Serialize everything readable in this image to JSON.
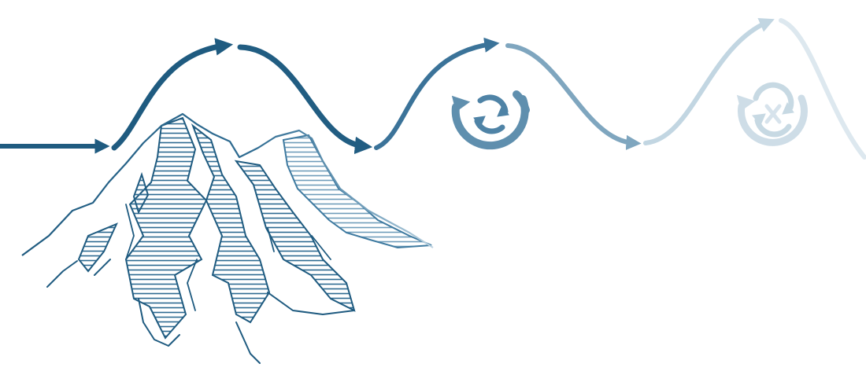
{
  "illustration": {
    "subject": "mountain-range-with-cyclic-arrow-path",
    "colors": {
      "primary": "#1f5b80",
      "mid": "#5b8fb0",
      "light": "#a9c6d8",
      "faint": "#dbe7ef",
      "background": "#ffffff"
    },
    "icons": [
      "arrow-path-icon",
      "mountain-icon",
      "cycle-icon",
      "cycle-icon"
    ]
  }
}
